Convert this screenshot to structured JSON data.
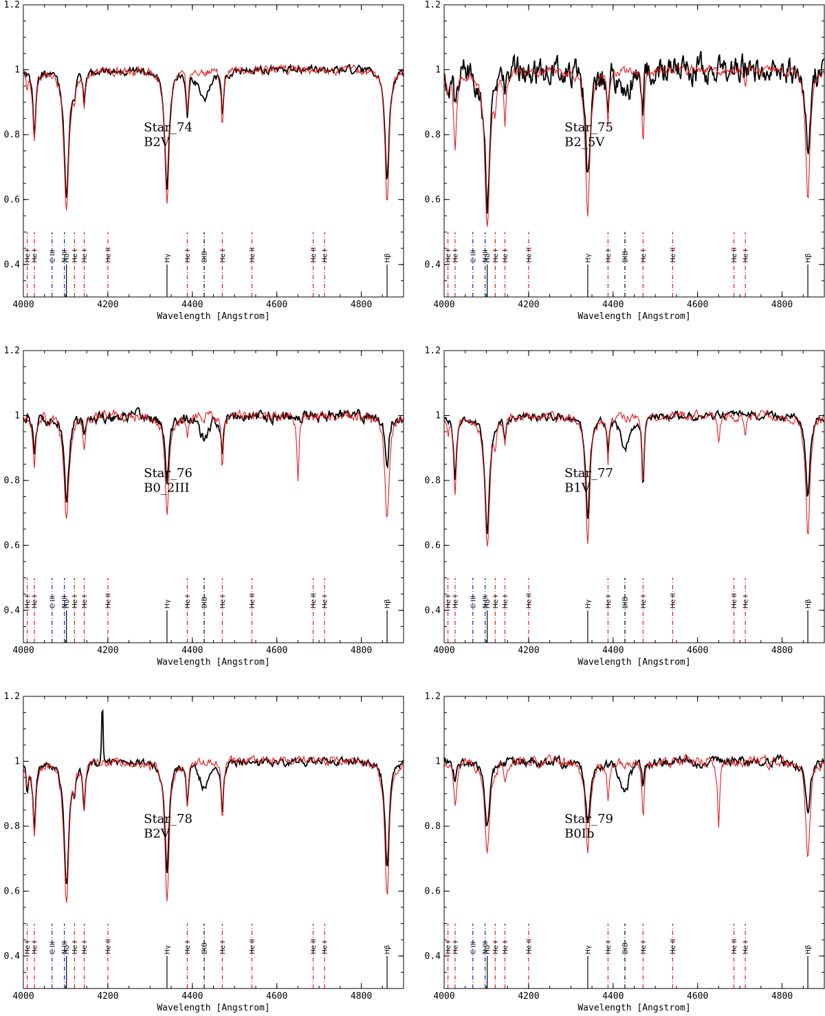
{
  "colors": {
    "observed": "#000000",
    "model": "#e41a1c",
    "marker_red": "#e41a1c",
    "marker_blue": "#1a1acc",
    "marker_black": "#000000"
  },
  "common": {
    "xlabel": "Wavelength [Angstrom]",
    "xlim": [
      4000,
      4900
    ],
    "ylim": [
      0.3,
      1.2
    ],
    "xticks": [
      4000,
      4200,
      4400,
      4600,
      4800
    ],
    "yticks": [
      0.4,
      0.6,
      0.8,
      1,
      1.2
    ],
    "ytick_labels": [
      "0.4",
      "0.6",
      "0.8",
      "1",
      "1.2"
    ]
  },
  "line_markers": [
    {
      "label": "He I",
      "wavelength": 4009,
      "color": "red",
      "style": "dashdot"
    },
    {
      "label": "He I",
      "wavelength": 4026,
      "color": "red",
      "style": "dashdot"
    },
    {
      "label": "C III",
      "wavelength": 4068,
      "color": "blue",
      "style": "dashdot"
    },
    {
      "label": "N III",
      "wavelength": 4097,
      "color": "blue",
      "style": "dashdot"
    },
    {
      "label": "Hδ",
      "wavelength": 4102,
      "color": "black",
      "style": "solid"
    },
    {
      "label": "He I",
      "wavelength": 4121,
      "color": "red",
      "style": "dashdot"
    },
    {
      "label": "He I",
      "wavelength": 4144,
      "color": "red",
      "style": "dashdot"
    },
    {
      "label": "He II",
      "wavelength": 4200,
      "color": "red",
      "style": "dashdot"
    },
    {
      "label": "Hγ",
      "wavelength": 4340,
      "color": "black",
      "style": "solid"
    },
    {
      "label": "He I",
      "wavelength": 4388,
      "color": "red",
      "style": "dashdot"
    },
    {
      "label": "DIB",
      "wavelength": 4428,
      "color": "black",
      "style": "dashdot"
    },
    {
      "label": "He I",
      "wavelength": 4471,
      "color": "red",
      "style": "dashdot"
    },
    {
      "label": "He II",
      "wavelength": 4541,
      "color": "red",
      "style": "dashdot"
    },
    {
      "label": "He II",
      "wavelength": 4686,
      "color": "red",
      "style": "dashdot"
    },
    {
      "label": "He I",
      "wavelength": 4713,
      "color": "red",
      "style": "dashdot"
    },
    {
      "label": "Hβ",
      "wavelength": 4861,
      "color": "black",
      "style": "solid"
    }
  ],
  "chart_data": [
    {
      "type": "line",
      "star": "Star_74",
      "spectral_type": "B2V",
      "xlabel": "Wavelength [Angstrom]",
      "xlim": [
        4000,
        4900
      ],
      "ylim": [
        0.3,
        1.2
      ],
      "legend": "none",
      "grid": false,
      "series": [
        {
          "values_kind": "observed",
          "noise": 0.012,
          "spike": null,
          "absorption": [
            [
              4026,
              0.2,
              4
            ],
            [
              4102,
              0.38,
              7
            ],
            [
              4121,
              0.05,
              3
            ],
            [
              4144,
              0.1,
              3
            ],
            [
              4340,
              0.37,
              6
            ],
            [
              4388,
              0.13,
              3
            ],
            [
              4428,
              0.09,
              14
            ],
            [
              4471,
              0.14,
              3
            ],
            [
              4861,
              0.34,
              6
            ]
          ]
        },
        {
          "values_kind": "model",
          "noise": 0.014,
          "spike": null,
          "absorption": [
            [
              4009,
              0.06,
              3
            ],
            [
              4026,
              0.2,
              4
            ],
            [
              4102,
              0.44,
              7
            ],
            [
              4121,
              0.06,
              3
            ],
            [
              4144,
              0.12,
              3
            ],
            [
              4340,
              0.42,
              6
            ],
            [
              4388,
              0.12,
              3
            ],
            [
              4471,
              0.17,
              3
            ],
            [
              4861,
              0.41,
              6
            ]
          ]
        }
      ]
    },
    {
      "type": "line",
      "star": "Star_75",
      "spectral_type": "B2_5V",
      "xlabel": "Wavelength [Angstrom]",
      "xlim": [
        4000,
        4900
      ],
      "ylim": [
        0.3,
        1.2
      ],
      "legend": "none",
      "grid": false,
      "series": [
        {
          "values_kind": "observed",
          "noise": 0.045,
          "spike": null,
          "absorption": [
            [
              4009,
              0.12,
              4
            ],
            [
              4026,
              0.1,
              4
            ],
            [
              4102,
              0.4,
              7
            ],
            [
              4144,
              0.08,
              3
            ],
            [
              4340,
              0.35,
              6
            ],
            [
              4388,
              0.1,
              3
            ],
            [
              4428,
              0.09,
              12
            ],
            [
              4471,
              0.1,
              3
            ],
            [
              4861,
              0.3,
              5
            ]
          ]
        },
        {
          "values_kind": "model",
          "noise": 0.014,
          "spike": null,
          "absorption": [
            [
              4009,
              0.06,
              3
            ],
            [
              4026,
              0.25,
              4
            ],
            [
              4102,
              0.49,
              7
            ],
            [
              4121,
              0.08,
              3
            ],
            [
              4144,
              0.15,
              3
            ],
            [
              4340,
              0.46,
              6
            ],
            [
              4388,
              0.15,
              3
            ],
            [
              4471,
              0.23,
              3
            ],
            [
              4713,
              0.05,
              3
            ],
            [
              4861,
              0.39,
              6
            ]
          ]
        }
      ]
    },
    {
      "type": "line",
      "star": "Star_76",
      "spectral_type": "B0_2III",
      "xlabel": "Wavelength [Angstrom]",
      "xlim": [
        4000,
        4900
      ],
      "ylim": [
        0.3,
        1.2
      ],
      "legend": "none",
      "grid": false,
      "series": [
        {
          "values_kind": "observed",
          "noise": 0.018,
          "spike": null,
          "absorption": [
            [
              4026,
              0.12,
              4
            ],
            [
              4102,
              0.25,
              7
            ],
            [
              4144,
              0.06,
              3
            ],
            [
              4340,
              0.2,
              6
            ],
            [
              4428,
              0.08,
              12
            ],
            [
              4471,
              0.13,
              3
            ],
            [
              4861,
              0.15,
              5
            ]
          ]
        },
        {
          "values_kind": "model",
          "noise": 0.016,
          "spike": null,
          "absorption": [
            [
              4026,
              0.15,
              4
            ],
            [
              4102,
              0.33,
              7
            ],
            [
              4144,
              0.08,
              3
            ],
            [
              4340,
              0.3,
              6
            ],
            [
              4388,
              0.06,
              3
            ],
            [
              4471,
              0.17,
              3
            ],
            [
              4650,
              0.2,
              3
            ],
            [
              4861,
              0.32,
              6
            ]
          ]
        }
      ]
    },
    {
      "type": "line",
      "star": "Star_77",
      "spectral_type": "B1V",
      "xlabel": "Wavelength [Angstrom]",
      "xlim": [
        4000,
        4900
      ],
      "ylim": [
        0.3,
        1.2
      ],
      "legend": "none",
      "grid": false,
      "series": [
        {
          "values_kind": "observed",
          "noise": 0.012,
          "spike": null,
          "absorption": [
            [
              4026,
              0.2,
              4
            ],
            [
              4102,
              0.35,
              7
            ],
            [
              4144,
              0.06,
              3
            ],
            [
              4340,
              0.31,
              6
            ],
            [
              4388,
              0.1,
              3
            ],
            [
              4428,
              0.1,
              12
            ],
            [
              4471,
              0.21,
              3
            ],
            [
              4861,
              0.25,
              6
            ]
          ]
        },
        {
          "values_kind": "model",
          "noise": 0.014,
          "spike": null,
          "absorption": [
            [
              4009,
              0.05,
              3
            ],
            [
              4026,
              0.24,
              4
            ],
            [
              4102,
              0.41,
              7
            ],
            [
              4121,
              0.06,
              3
            ],
            [
              4144,
              0.08,
              3
            ],
            [
              4340,
              0.39,
              6
            ],
            [
              4388,
              0.14,
              3
            ],
            [
              4471,
              0.22,
              3
            ],
            [
              4650,
              0.08,
              3
            ],
            [
              4713,
              0.05,
              3
            ],
            [
              4861,
              0.37,
              6
            ]
          ]
        }
      ]
    },
    {
      "type": "line",
      "star": "Star_78",
      "spectral_type": "B2V",
      "xlabel": "Wavelength [Angstrom]",
      "xlim": [
        4000,
        4900
      ],
      "ylim": [
        0.3,
        1.2
      ],
      "legend": "none",
      "grid": false,
      "series": [
        {
          "values_kind": "observed",
          "noise": 0.012,
          "spike": [
            4187,
            0.17
          ],
          "absorption": [
            [
              4009,
              0.08,
              3
            ],
            [
              4026,
              0.2,
              4
            ],
            [
              4102,
              0.38,
              7
            ],
            [
              4121,
              0.06,
              3
            ],
            [
              4144,
              0.14,
              3
            ],
            [
              4340,
              0.35,
              6
            ],
            [
              4388,
              0.12,
              3
            ],
            [
              4428,
              0.08,
              12
            ],
            [
              4471,
              0.16,
              3
            ],
            [
              4861,
              0.33,
              6
            ]
          ]
        },
        {
          "values_kind": "model",
          "noise": 0.014,
          "spike": null,
          "absorption": [
            [
              4009,
              0.06,
              3
            ],
            [
              4026,
              0.21,
              4
            ],
            [
              4102,
              0.44,
              7
            ],
            [
              4121,
              0.07,
              3
            ],
            [
              4144,
              0.14,
              3
            ],
            [
              4340,
              0.43,
              6
            ],
            [
              4388,
              0.12,
              3
            ],
            [
              4471,
              0.18,
              3
            ],
            [
              4861,
              0.41,
              6
            ]
          ]
        }
      ]
    },
    {
      "type": "line",
      "star": "Star_79",
      "spectral_type": "B0Ib",
      "xlabel": "Wavelength [Angstrom]",
      "xlim": [
        4000,
        4900
      ],
      "ylim": [
        0.3,
        1.2
      ],
      "legend": "none",
      "grid": false,
      "series": [
        {
          "values_kind": "observed",
          "noise": 0.015,
          "spike": null,
          "absorption": [
            [
              4026,
              0.06,
              4
            ],
            [
              4102,
              0.2,
              7
            ],
            [
              4340,
              0.2,
              6
            ],
            [
              4428,
              0.09,
              12
            ],
            [
              4471,
              0.08,
              3
            ],
            [
              4861,
              0.15,
              6
            ]
          ]
        },
        {
          "values_kind": "model",
          "noise": 0.016,
          "spike": null,
          "absorption": [
            [
              4026,
              0.14,
              4
            ],
            [
              4102,
              0.29,
              7
            ],
            [
              4144,
              0.06,
              3
            ],
            [
              4340,
              0.3,
              6
            ],
            [
              4388,
              0.1,
              3
            ],
            [
              4471,
              0.18,
              3
            ],
            [
              4650,
              0.21,
              3
            ],
            [
              4861,
              0.3,
              6
            ]
          ]
        }
      ]
    }
  ]
}
